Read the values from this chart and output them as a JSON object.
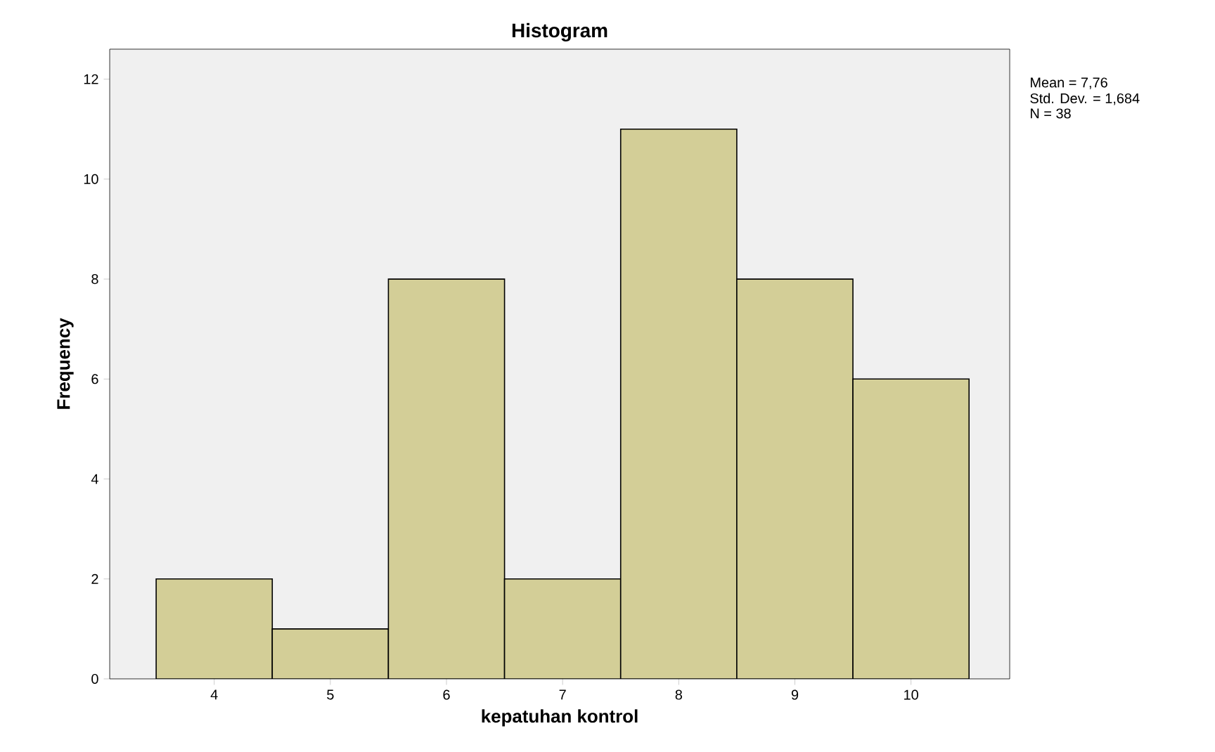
{
  "chart_data": {
    "type": "histogram",
    "title": "Histogram",
    "xlabel": "kepatuhan kontrol",
    "ylabel": "Frequency",
    "bins": [
      3.5,
      4.5,
      5.5,
      6.5,
      7.5,
      8.5,
      9.5,
      10.5
    ],
    "values": [
      2,
      1,
      8,
      2,
      11,
      8,
      6
    ],
    "color": "#d3ce97",
    "xlim": [
      3.1,
      10.85
    ],
    "ylim": [
      0,
      12.6
    ],
    "xticks": [
      4,
      5,
      6,
      7,
      8,
      9,
      10
    ],
    "yticks": [
      0,
      2,
      4,
      6,
      8,
      10,
      12
    ],
    "grid": false,
    "annotations": [
      "Mean = 7,76",
      "Std. Dev. = 1,684",
      "N = 38"
    ]
  }
}
